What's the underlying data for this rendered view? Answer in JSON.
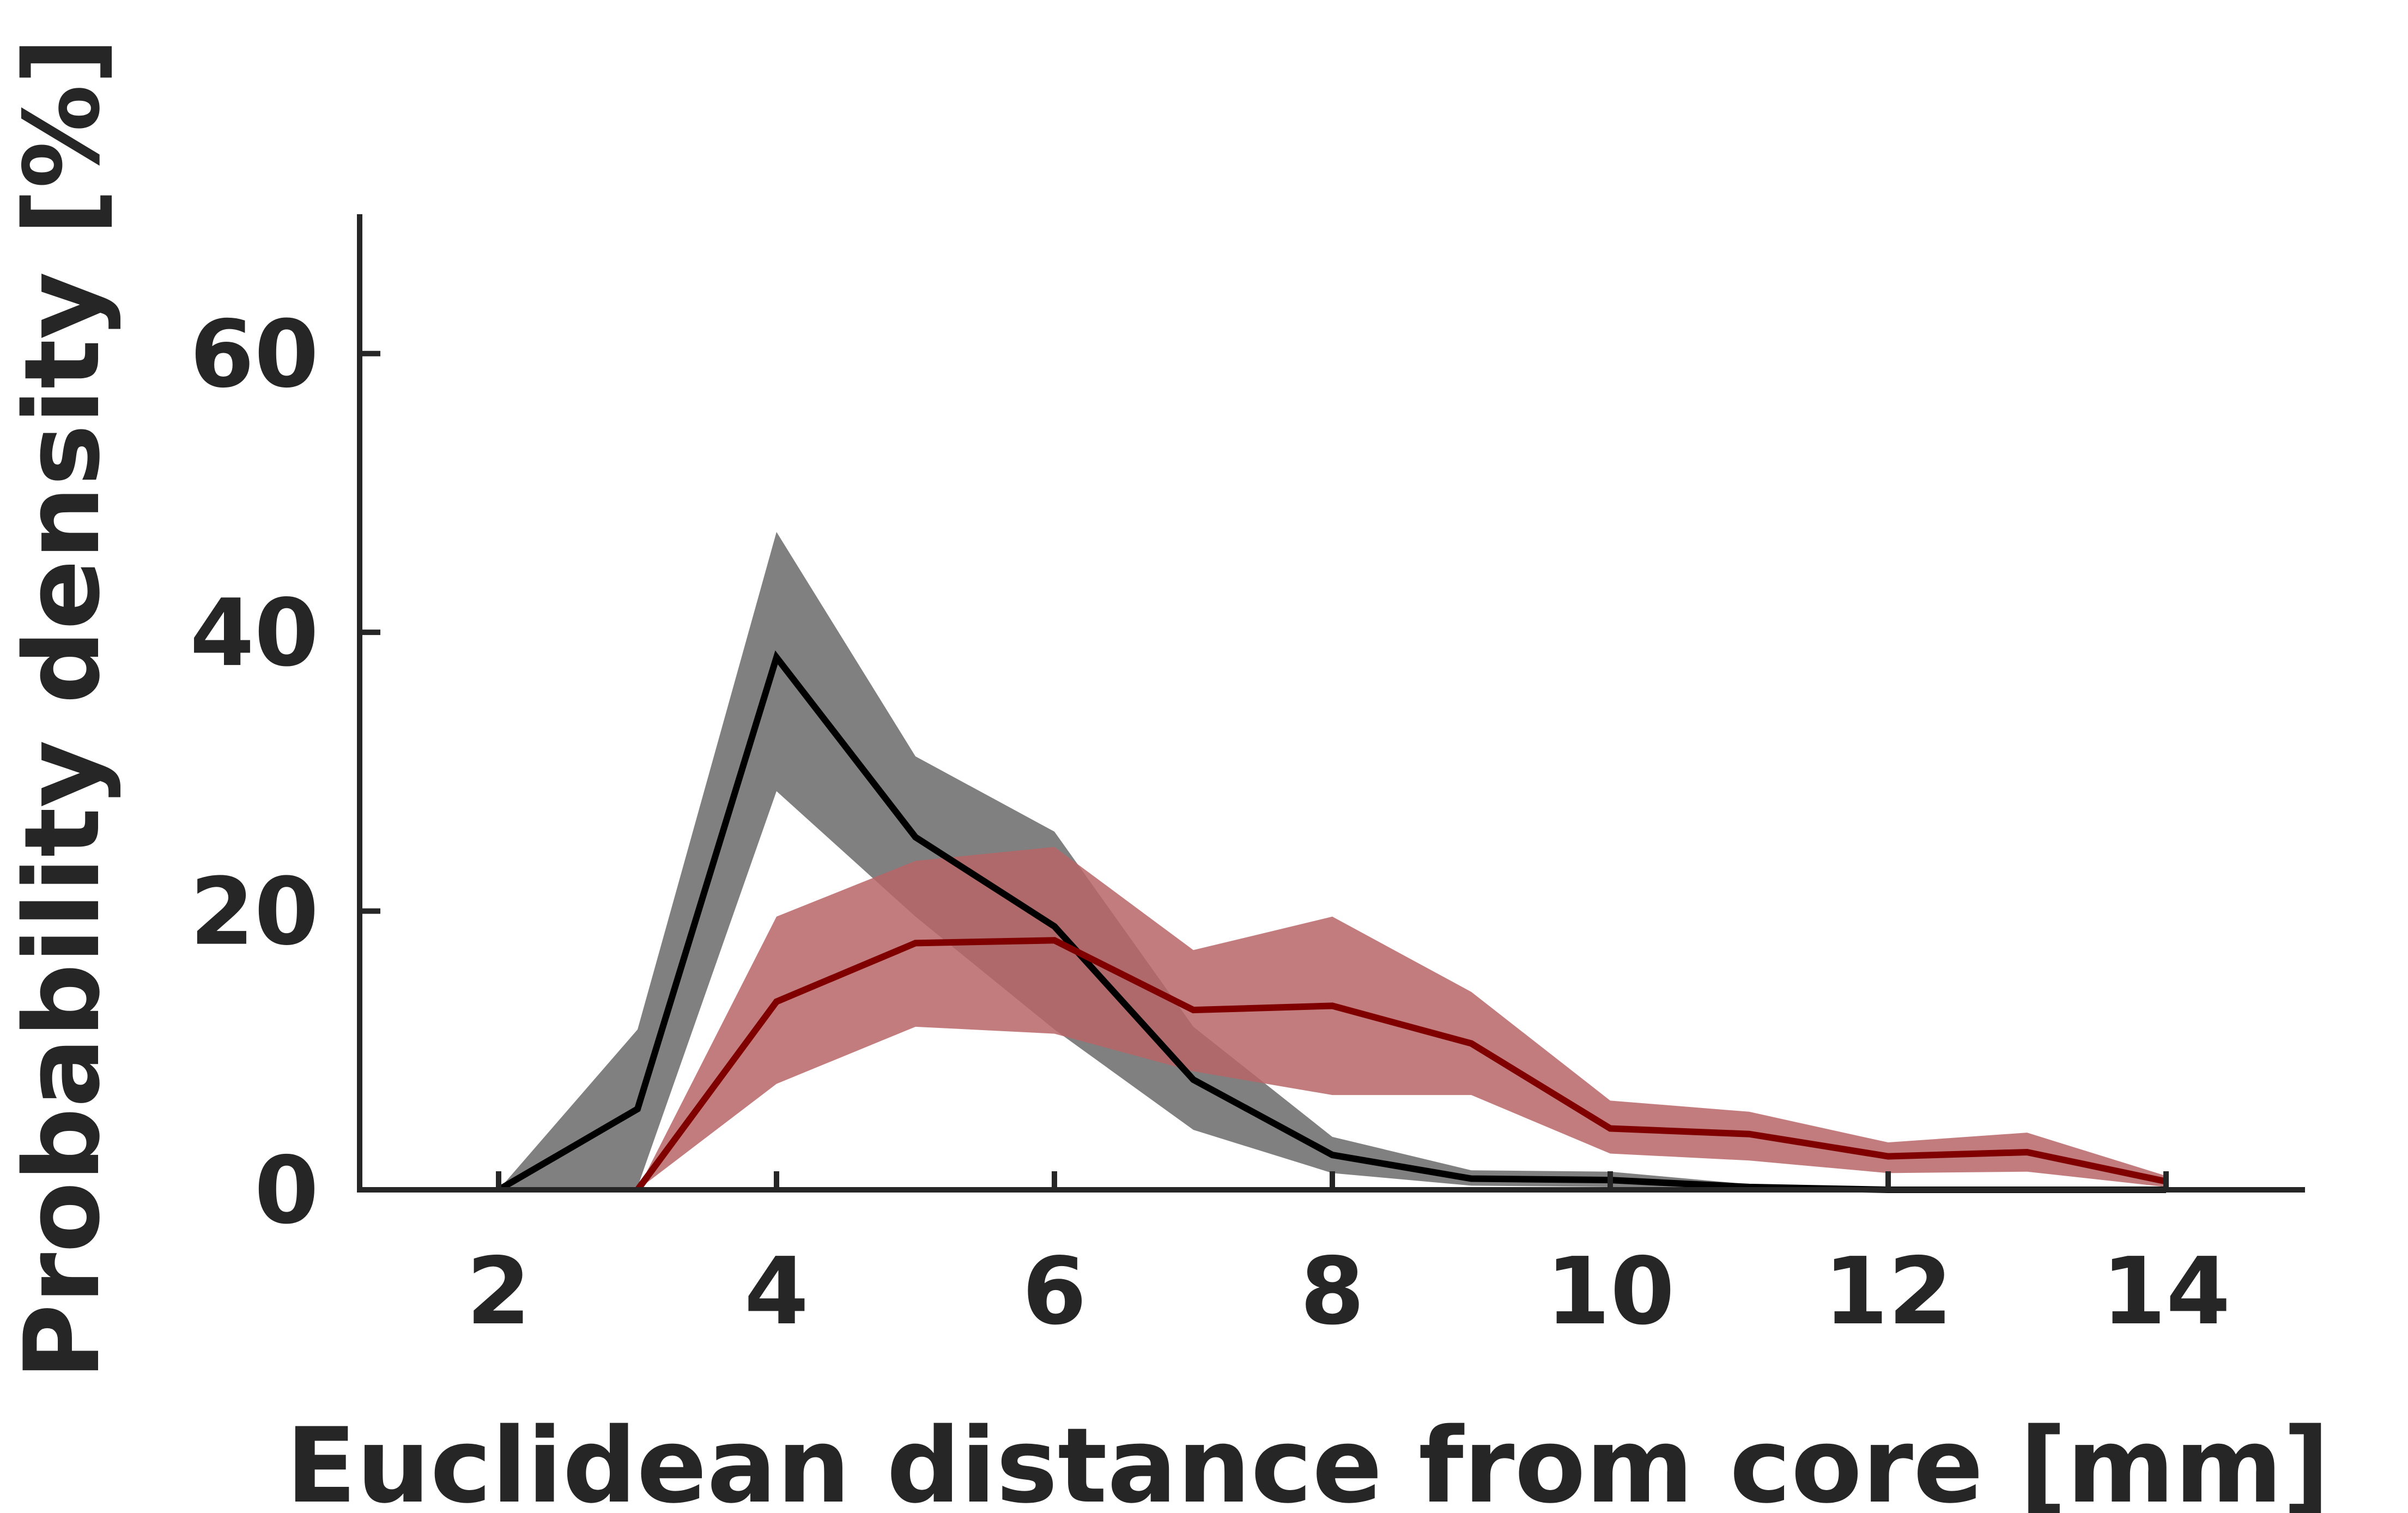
{
  "chart_data": {
    "type": "line",
    "xlabel": "Euclidean distance from core [mm]",
    "ylabel": "Probability density [%]",
    "xlim": [
      1.0,
      15.0
    ],
    "ylim": [
      0,
      70
    ],
    "xticks": [
      2,
      4,
      6,
      8,
      10,
      12,
      14
    ],
    "yticks": [
      0,
      20,
      40,
      60
    ],
    "grid": false,
    "legend": "none",
    "series": [
      {
        "color": "#000000",
        "band_color": "#808080",
        "x": [
          2,
          3,
          4,
          5,
          6,
          7,
          8,
          9,
          10,
          11,
          12,
          13,
          14
        ],
        "y": [
          0,
          5.8,
          38.2,
          25.3,
          18.9,
          7.9,
          2.5,
          0.8,
          0.7,
          0.2,
          0.0,
          0.0,
          0.0
        ],
        "lower": [
          0,
          0.2,
          28.6,
          19.6,
          11.5,
          4.3,
          1.2,
          0.3,
          0.2,
          0.0,
          0.0,
          0.0,
          0.0
        ],
        "upper": [
          0,
          11.5,
          47.2,
          31.1,
          25.7,
          11.7,
          3.8,
          1.4,
          1.3,
          0.4,
          0.1,
          0.1,
          0.0
        ]
      },
      {
        "color": "#800000",
        "band_color": "#b86567",
        "x": [
          3,
          4,
          5,
          6,
          7,
          8,
          9,
          10,
          11,
          12,
          13,
          14
        ],
        "y": [
          0,
          13.5,
          17.7,
          17.9,
          12.9,
          13.2,
          10.5,
          4.4,
          4.0,
          2.4,
          2.7,
          0.6
        ],
        "lower": [
          0,
          7.6,
          11.7,
          11.2,
          8.5,
          6.8,
          6.8,
          2.6,
          2.1,
          1.2,
          1.3,
          0.2
        ],
        "upper": [
          0,
          19.6,
          23.6,
          24.6,
          17.2,
          19.6,
          14.2,
          6.4,
          5.6,
          3.4,
          4.1,
          1.0
        ]
      }
    ]
  }
}
